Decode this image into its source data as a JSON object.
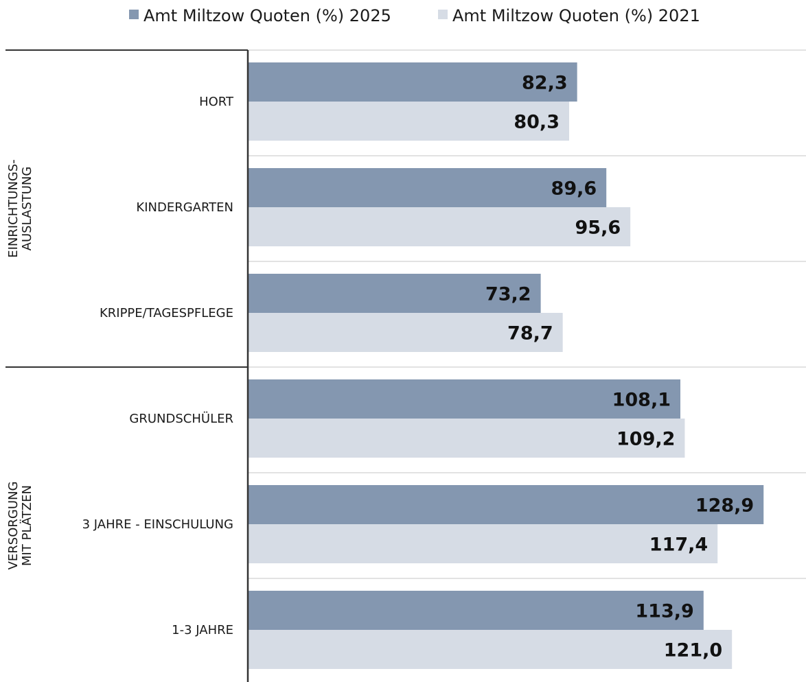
{
  "chart_data": {
    "type": "bar",
    "orientation": "horizontal",
    "categories": [
      "HORT",
      "KINDERGARTEN",
      "KRIPPE/TAGESPFLEGE",
      "GRUNDSCHÜLER",
      "3 JAHRE - EINSCHULUNG",
      "1-3 JAHRE"
    ],
    "category_groups": [
      {
        "label_lines": [
          "EINRICHTUNGS-",
          "AUSLASTUNG"
        ],
        "categories": [
          "HORT",
          "KINDERGARTEN",
          "KRIPPE/TAGESPFLEGE"
        ]
      },
      {
        "label_lines": [
          "VERSORGUNG",
          "MIT PLÄTZEN"
        ],
        "categories": [
          "GRUNDSCHÜLER",
          "3 JAHRE - EINSCHULUNG",
          "1-3 JAHRE"
        ]
      }
    ],
    "series": [
      {
        "name": "Amt Miltzow Quoten (%) 2025",
        "color": "#8497b0",
        "values": [
          82.3,
          89.6,
          73.2,
          108.1,
          128.9,
          113.9
        ],
        "labels": [
          "82,3",
          "89,6",
          "73,2",
          "108,1",
          "128,9",
          "113,9"
        ]
      },
      {
        "name": "Amt Miltzow Quoten (%) 2021",
        "color": "#d6dce5",
        "values": [
          80.3,
          95.6,
          78.7,
          109.2,
          117.4,
          121.0
        ],
        "labels": [
          "80,3",
          "95,6",
          "78,7",
          "109,2",
          "117,4",
          "121,0"
        ]
      }
    ],
    "xlim": [
      0,
      139.5
    ],
    "legend_position": "top",
    "grid": true,
    "title": "",
    "xlabel": "",
    "ylabel": ""
  },
  "colors": {
    "axis": "#333333",
    "gridline": "#d9d9d9",
    "group_divider": "#333333"
  }
}
